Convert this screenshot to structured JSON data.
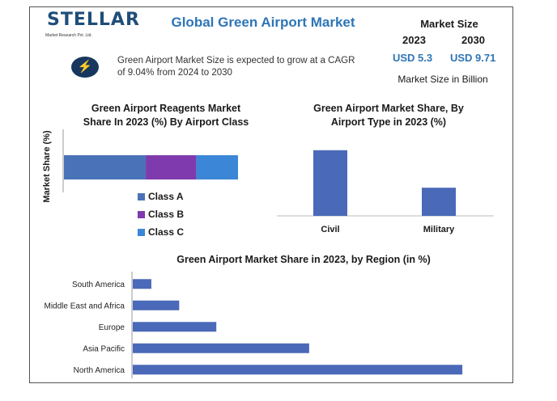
{
  "logo": {
    "name": "STELLAR",
    "tagline": "Market Research Pvt. Ltd."
  },
  "header": {
    "title": "Global Green Airport Market",
    "market_size_label": "Market Size",
    "year_start": "2023",
    "year_end": "2030",
    "value_start": "USD 5.3",
    "value_end": "USD 9.71",
    "unit_note": "Market Size in Billion",
    "summary": "Green Airport Market Size is expected to grow at a CAGR of 9.04% from 2024 to 2030",
    "accent_color": "#2e75b6"
  },
  "chart_data": [
    {
      "type": "bar",
      "orientation": "horizontal-stacked",
      "title": "Green Airport Reagents Market Share In 2023 (%) By Airport Class",
      "ylabel": "Market Share (%)",
      "series": [
        {
          "name": "Class A",
          "values": [
            47
          ],
          "color": "#4a72b8"
        },
        {
          "name": "Class B",
          "values": [
            29
          ],
          "color": "#7f3bad"
        },
        {
          "name": "Class C",
          "values": [
            24
          ],
          "color": "#3b86d6"
        }
      ],
      "legend": "bottom-left"
    },
    {
      "type": "bar",
      "title": "Green Airport Market Share, By Airport Type in 2023 (%)",
      "categories": [
        "Civil",
        "Military"
      ],
      "values": [
        70,
        30
      ],
      "ylim": [
        0,
        75
      ],
      "color": "#4a69b8"
    },
    {
      "type": "bar",
      "orientation": "horizontal",
      "title": "Green Airport Market Share in 2023, by Region (in %)",
      "categories": [
        "South America",
        "Middle East and Africa",
        "Europe",
        "Asia Pacific",
        "North America"
      ],
      "values": [
        4,
        10,
        18,
        38,
        71
      ],
      "xlim": [
        0,
        75
      ],
      "color": "#4a69b8"
    }
  ]
}
